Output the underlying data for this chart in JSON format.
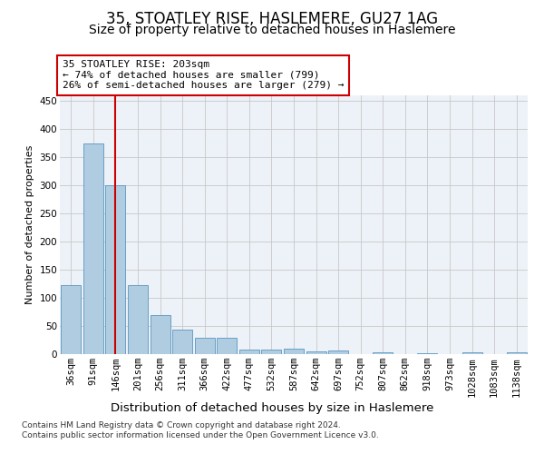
{
  "title": "35, STOATLEY RISE, HASLEMERE, GU27 1AG",
  "subtitle": "Size of property relative to detached houses in Haslemere",
  "xlabel": "Distribution of detached houses by size in Haslemere",
  "ylabel": "Number of detached properties",
  "categories": [
    "36sqm",
    "91sqm",
    "146sqm",
    "201sqm",
    "256sqm",
    "311sqm",
    "366sqm",
    "422sqm",
    "477sqm",
    "532sqm",
    "587sqm",
    "642sqm",
    "697sqm",
    "752sqm",
    "807sqm",
    "862sqm",
    "918sqm",
    "973sqm",
    "1028sqm",
    "1083sqm",
    "1138sqm"
  ],
  "values": [
    122,
    375,
    301,
    123,
    70,
    43,
    29,
    29,
    8,
    8,
    10,
    5,
    6,
    0,
    3,
    0,
    2,
    0,
    3,
    0,
    3
  ],
  "bar_color": "#b0cce0",
  "bar_edge_color": "#5a96c0",
  "background_color": "#edf2f8",
  "grid_color": "#c8c8c8",
  "annotation_line1": "35 STOATLEY RISE: 203sqm",
  "annotation_line2": "← 74% of detached houses are smaller (799)",
  "annotation_line3": "26% of semi-detached houses are larger (279) →",
  "annotation_box_facecolor": "#ffffff",
  "annotation_box_edgecolor": "#cc0000",
  "vline_x": 2.0,
  "vline_color": "#cc0000",
  "ylim": [
    0,
    460
  ],
  "yticks": [
    0,
    50,
    100,
    150,
    200,
    250,
    300,
    350,
    400,
    450
  ],
  "footer_line1": "Contains HM Land Registry data © Crown copyright and database right 2024.",
  "footer_line2": "Contains public sector information licensed under the Open Government Licence v3.0.",
  "title_fontsize": 12,
  "subtitle_fontsize": 10,
  "ylabel_fontsize": 8,
  "xlabel_fontsize": 9.5,
  "tick_fontsize": 7.5,
  "annotation_fontsize": 8,
  "footer_fontsize": 6.5
}
